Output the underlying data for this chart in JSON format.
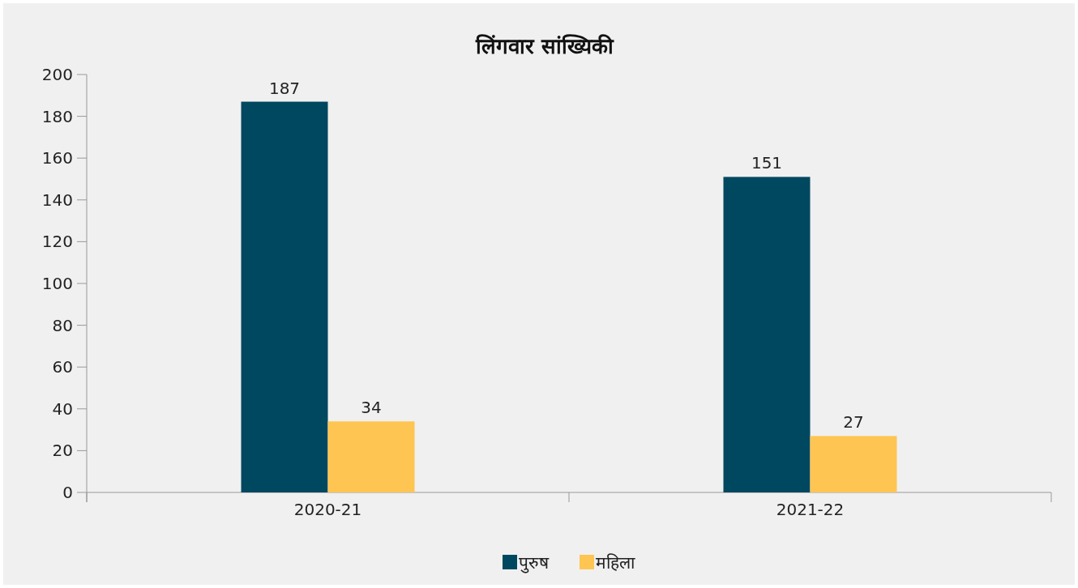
{
  "chart_data": {
    "type": "bar",
    "title": "लिंगवार सांख्यिकी",
    "categories": [
      "2020-21",
      "2021-22"
    ],
    "series": [
      {
        "name": "पुरुष",
        "color": "#004760",
        "values": [
          187,
          151
        ]
      },
      {
        "name": "महिला",
        "color": "#ffc553",
        "values": [
          34,
          27
        ]
      }
    ],
    "ylim": [
      0,
      200
    ],
    "yticks": [
      0,
      20,
      40,
      60,
      80,
      100,
      120,
      140,
      160,
      180,
      200
    ],
    "data_labels": true,
    "legend": "bottom",
    "grid": false
  }
}
